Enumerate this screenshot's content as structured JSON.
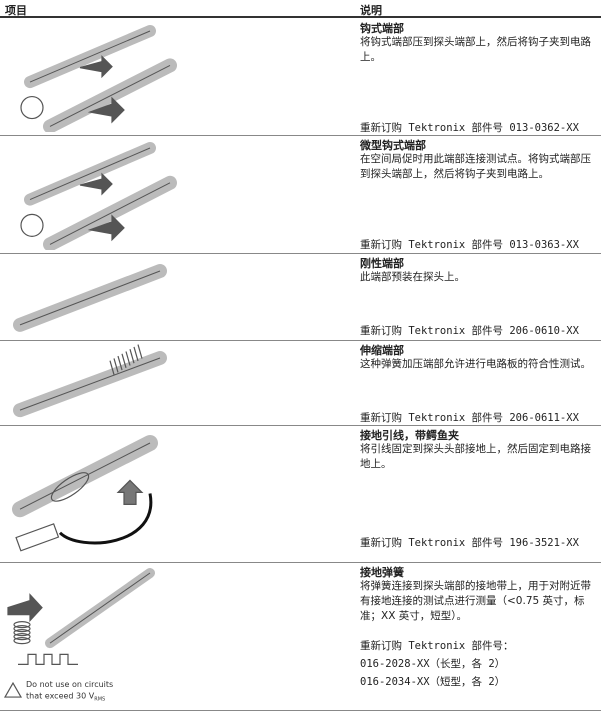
{
  "header": {
    "item": "项目",
    "description": "说明"
  },
  "rows": [
    {
      "title": "钩式端部",
      "text": "将钩式端部压到探头端部上，然后将钩子夹到电路上。",
      "order": [
        "重新订购 Tektronix 部件号 013-0362-XX"
      ]
    },
    {
      "title": "微型钩式端部",
      "text": "在空间局促时用此端部连接测试点。将钩式端部压到探头端部上，然后将钩子夹到电路上。",
      "order": [
        "重新订购 Tektronix 部件号 013-0363-XX"
      ]
    },
    {
      "title": "刚性端部",
      "text": "此端部预装在探头上。",
      "order": [
        "重新订购 Tektronix 部件号 206-0610-XX"
      ]
    },
    {
      "title": "伸缩端部",
      "text": "这种弹簧加压端部允许进行电路板的符合性测试。",
      "order": [
        "重新订购 Tektronix 部件号 206-0611-XX"
      ]
    },
    {
      "title": "接地引线，带鳄鱼夹",
      "text": "将引线固定到探头头部接地上，然后固定到电路接地上。",
      "order": [
        "重新订购 Tektronix 部件号 196-3521-XX"
      ]
    },
    {
      "title": "接地弹簧",
      "text": "将弹簧连接到探头端部的接地带上，用于对附近带有接地连接的测试点进行测量（<0.75 英寸，标准；XX 英寸，短型）。",
      "order": [
        "重新订购 Tektronix 部件号：",
        "016-2028-XX（长型，各 2）",
        "016-2034-XX（短型，各 2）"
      ]
    }
  ],
  "warning": {
    "line1": "Do not use on circuits",
    "line2": "that exceed 30 V",
    "sub": "RMS"
  }
}
